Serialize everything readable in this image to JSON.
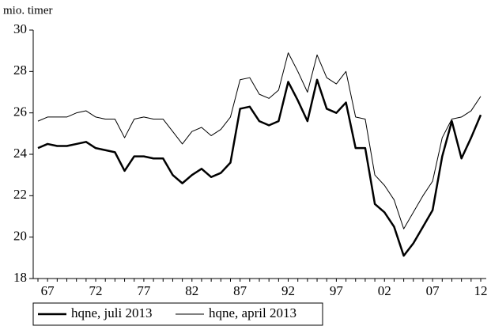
{
  "chart_data": {
    "type": "line",
    "y_label": "mio. timer",
    "categories": [
      null,
      "67",
      null,
      null,
      null,
      null,
      "72",
      null,
      null,
      null,
      null,
      "77",
      null,
      null,
      null,
      null,
      "82",
      null,
      null,
      null,
      null,
      "87",
      null,
      null,
      null,
      null,
      "92",
      null,
      null,
      null,
      null,
      "97",
      null,
      null,
      null,
      null,
      "02",
      null,
      null,
      null,
      null,
      "07",
      null,
      null,
      null,
      null,
      "12"
    ],
    "series": [
      {
        "name": "hqne, juli 2013",
        "color": "#000000",
        "width": 2.5,
        "values": [
          24.3,
          24.5,
          24.4,
          24.4,
          24.5,
          24.6,
          24.3,
          24.2,
          24.1,
          23.2,
          23.9,
          23.9,
          23.8,
          23.8,
          23.0,
          22.6,
          23.0,
          23.3,
          22.9,
          23.1,
          23.6,
          26.2,
          26.3,
          25.6,
          25.4,
          25.6,
          27.5,
          26.6,
          25.6,
          27.6,
          26.2,
          26.0,
          26.5,
          24.3,
          24.3,
          21.6,
          21.2,
          20.5,
          19.1,
          19.7,
          20.5,
          21.3,
          23.9,
          25.6,
          23.8,
          24.8,
          25.9
        ]
      },
      {
        "name": "hqne, april 2013",
        "color": "#000000",
        "width": 1,
        "values": [
          25.6,
          25.8,
          25.8,
          25.8,
          26.0,
          26.1,
          25.8,
          25.7,
          25.7,
          24.8,
          25.7,
          25.8,
          25.7,
          25.7,
          25.1,
          24.5,
          25.1,
          25.3,
          24.9,
          25.2,
          25.8,
          27.6,
          27.7,
          26.9,
          26.7,
          27.1,
          28.9,
          28.0,
          27.0,
          28.8,
          27.7,
          27.4,
          28.0,
          25.8,
          25.7,
          23.0,
          22.5,
          21.8,
          20.4,
          21.2,
          22.0,
          22.7,
          24.8,
          25.7,
          25.8,
          26.1,
          26.8
        ]
      }
    ],
    "ylim": [
      18,
      30
    ],
    "yticks": [
      18,
      20,
      22,
      24,
      26,
      28,
      30
    ],
    "grid": false
  }
}
